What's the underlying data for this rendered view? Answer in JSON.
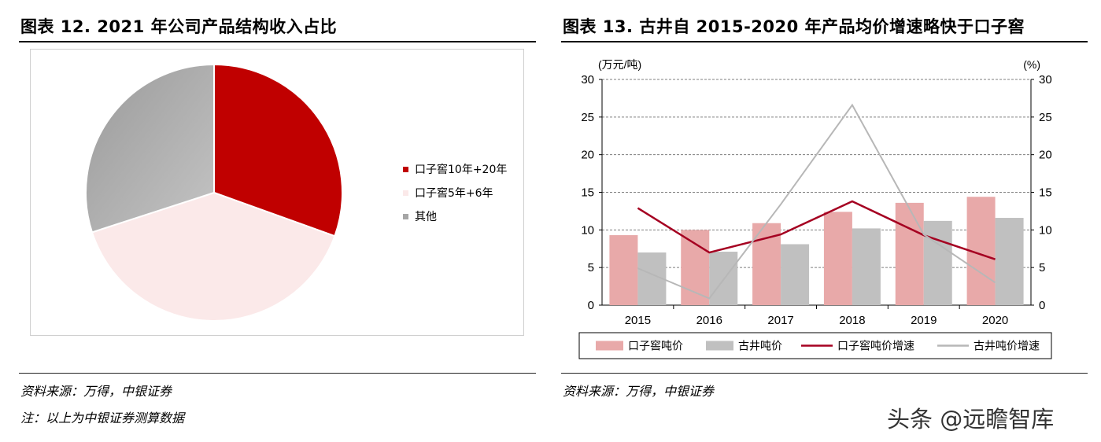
{
  "left": {
    "title": "图表 12. 2021 年公司产品结构收入占比",
    "source": "资料来源：万得，中银证券",
    "note": "注：以上为中银证券测算数据"
  },
  "right": {
    "title": "图表 13. 古井自 2015-2020 年产品均价增速略快于口子窖",
    "source": "资料来源：万得，中银证券",
    "y_left_unit": "(万元/吨)",
    "y_right_unit": "(%)"
  },
  "watermark": "头条 @远瞻智库",
  "chart_data": [
    {
      "type": "pie",
      "title": "",
      "legend_position": "right",
      "slices": [
        {
          "label": "口子窖10年+20年",
          "value": 30.5,
          "color": "#c00000"
        },
        {
          "label": "口子窖5年+6年",
          "value": 39.5,
          "color": "#fbe9e9"
        },
        {
          "label": "其他",
          "value": 30.0,
          "color": "#a6a6a6"
        }
      ]
    },
    {
      "type": "bar",
      "title": "",
      "categories": [
        "2015",
        "2016",
        "2017",
        "2018",
        "2019",
        "2020"
      ],
      "ylim_left": [
        0,
        30
      ],
      "ylim_right": [
        0,
        30
      ],
      "y_ticks": [
        0,
        5,
        10,
        15,
        20,
        25,
        30
      ],
      "grid": true,
      "legend_position": "bottom",
      "series": [
        {
          "name": "口子窖吨价",
          "kind": "bar",
          "axis": "left",
          "color": "#e8a9a9",
          "values": [
            9.3,
            10.0,
            10.9,
            12.4,
            13.6,
            14.4
          ]
        },
        {
          "name": "古井吨价",
          "kind": "bar",
          "axis": "left",
          "color": "#c0c0c0",
          "values": [
            7.0,
            7.1,
            8.1,
            10.2,
            11.2,
            11.6
          ]
        },
        {
          "name": "口子窖吨价增速",
          "kind": "line",
          "axis": "right",
          "color": "#a50021",
          "values": [
            12.9,
            7.0,
            9.4,
            13.8,
            9.3,
            6.1
          ]
        },
        {
          "name": "古井吨价增速",
          "kind": "line",
          "axis": "right",
          "color": "#b7b7b7",
          "values": [
            4.9,
            0.9,
            13.4,
            26.6,
            9.4,
            3.0
          ]
        }
      ]
    }
  ]
}
